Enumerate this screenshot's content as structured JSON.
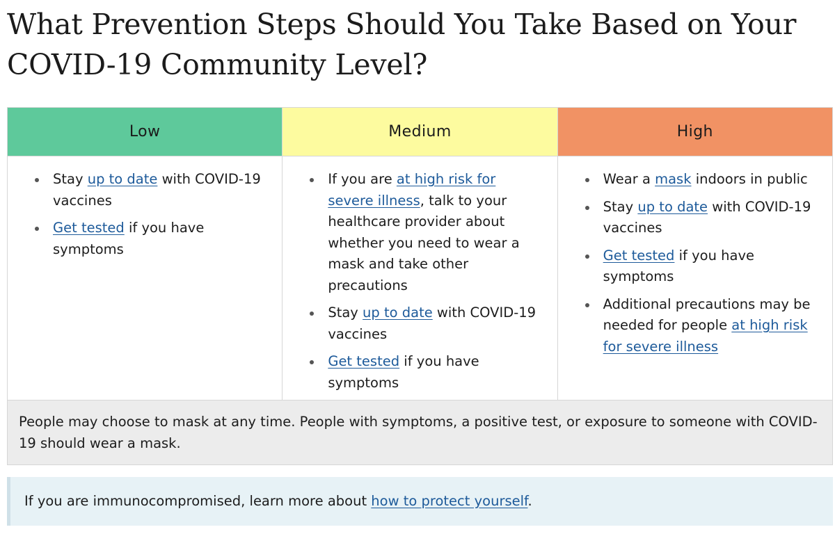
{
  "page": {
    "title": "What Prevention Steps Should You Take Based on Your COVID-19 Community Level?"
  },
  "table": {
    "columns": [
      {
        "level": "Low",
        "color": "#5ec99b",
        "items": [
          {
            "before": "Stay ",
            "link": "up to date",
            "after": " with COVID-19 vaccines"
          },
          {
            "before": "",
            "link": "Get tested",
            "after": " if you have symptoms"
          }
        ]
      },
      {
        "level": "Medium",
        "color": "#fdfb9f",
        "items": [
          {
            "before": "If you are ",
            "link": "at high risk for severe illness",
            "after": ", talk to your healthcare provider about whether you need to wear a mask and take other precautions"
          },
          {
            "before": "Stay ",
            "link": "up to date",
            "after": " with COVID-19 vaccines"
          },
          {
            "before": "",
            "link": "Get tested",
            "after": " if you have symptoms"
          }
        ]
      },
      {
        "level": "High",
        "color": "#f19264",
        "items": [
          {
            "before": "Wear a ",
            "link": "mask",
            "after": " indoors in public"
          },
          {
            "before": "Stay ",
            "link": "up to date",
            "after": " with COVID-19 vaccines"
          },
          {
            "before": "",
            "link": "Get tested",
            "after": " if you have symptoms"
          },
          {
            "before": "Additional precautions may be needed for people ",
            "link": "at high risk for severe illness",
            "after": ""
          }
        ]
      }
    ],
    "footer_note": "People may choose to mask at any time. People with symptoms, a positive test, or exposure to someone with COVID-19 should wear a mask."
  },
  "callout": {
    "before": "If you are immunocompromised, learn more about ",
    "link": "how to protect yourself",
    "after": "."
  },
  "colors": {
    "link": "#1d5a9a",
    "footer_background": "#ececec",
    "callout_background": "#e7f2f6"
  }
}
